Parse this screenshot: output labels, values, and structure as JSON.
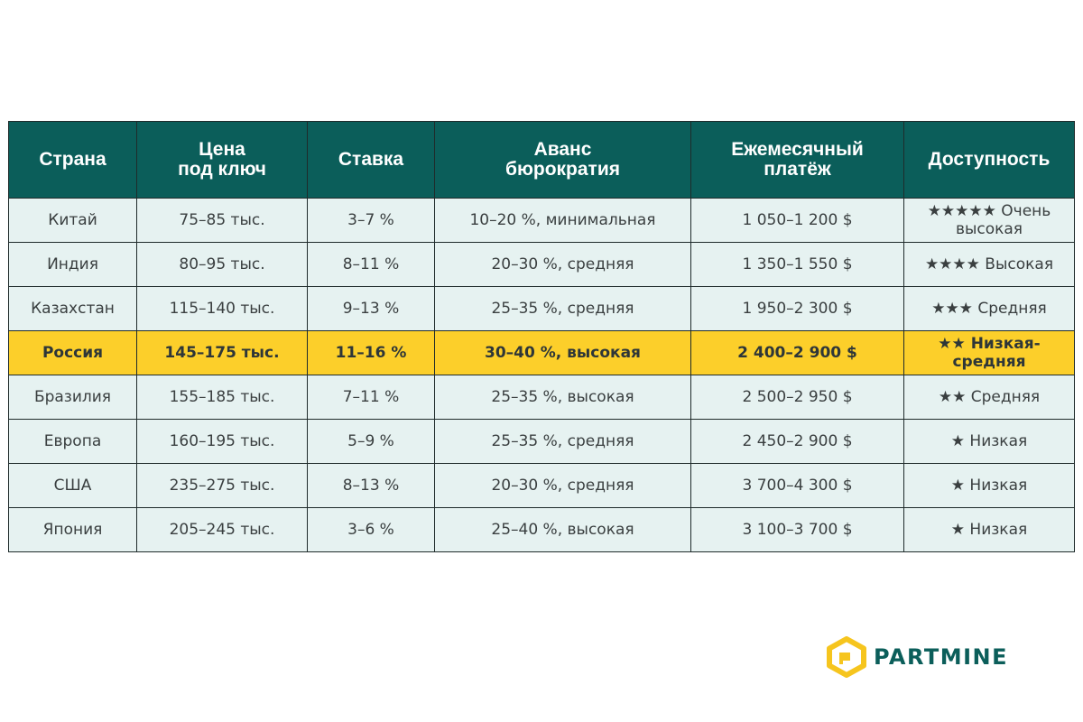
{
  "table": {
    "headers": [
      [
        "Страна",
        ""
      ],
      [
        "Цена",
        "под ключ"
      ],
      [
        "Ставка",
        ""
      ],
      [
        "Аванс",
        "бюрократия"
      ],
      [
        "Ежемесячный",
        "платёж"
      ],
      [
        "Доступность",
        ""
      ]
    ],
    "rows": [
      [
        "Китай",
        "75–85 тыс.",
        "3–7 %",
        "10–20 %, минимальная",
        "1 050–1 200 $",
        "★★★★★ Очень высокая"
      ],
      [
        "Индия",
        "80–95 тыс.",
        "8–11 %",
        "20–30 %, средняя",
        "1 350–1 550 $",
        "★★★★ Высокая"
      ],
      [
        "Казахстан",
        "115–140 тыс.",
        "9–13 %",
        "25–35 %, средняя",
        "1 950–2 300 $",
        "★★★ Средняя"
      ],
      [
        "Россия",
        "145–175 тыс.",
        "11–16 %",
        "30–40 %, высокая",
        "2 400–2 900 $",
        "★★ Низкая-средняя"
      ],
      [
        "Бразилия",
        "155–185 тыс.",
        "7–11 %",
        "25–35 %, высокая",
        "2 500–2 950 $",
        "★★ Средняя"
      ],
      [
        "Европа",
        "160–195 тыс.",
        "5–9 %",
        "25–35 %, средняя",
        "2 450–2 900 $",
        "★ Низкая"
      ],
      [
        "США",
        "235–275 тыс.",
        "8–13 %",
        "20–30 %, средняя",
        "3 700–4 300 $",
        "★ Низкая"
      ],
      [
        "Япония",
        "205–245 тыс.",
        "3–6 %",
        "25–40 %, высокая",
        "3 100–3 700 $",
        "★ Низкая"
      ]
    ],
    "highlight_row_index": 3
  },
  "logo": {
    "text": "PARTMINE",
    "icon": "partmine-logo-icon"
  },
  "colors": {
    "header_bg": "#0b5e5a",
    "row_bg": "#e6f2f1",
    "highlight_bg": "#fccf2a",
    "logo_yellow": "#f6c51e",
    "logo_text": "#0b5e5a"
  }
}
